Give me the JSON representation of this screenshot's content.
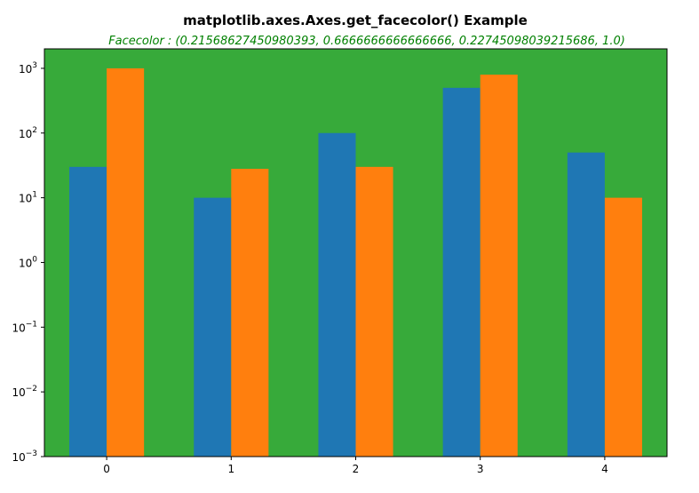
{
  "chart_data": {
    "type": "bar",
    "title": "matplotlib.axes.Axes.get_facecolor() Example",
    "subtitle": "Facecolor : (0.21568627450980393, 0.6666666666666666, 0.22745098039215686, 1.0)",
    "subtitle_color": "#008000",
    "axes_facecolor": "#37aa3a",
    "yscale": "log",
    "ylim": [
      0.001,
      2000
    ],
    "xlim": [
      -0.5,
      4.5
    ],
    "categories": [
      "0",
      "1",
      "2",
      "3",
      "4"
    ],
    "x": [
      0,
      1,
      2,
      3,
      4
    ],
    "bar_width": 0.3,
    "y_ticks": [
      {
        "base": "10",
        "exp": "−3",
        "value": 0.001
      },
      {
        "base": "10",
        "exp": "−2",
        "value": 0.01
      },
      {
        "base": "10",
        "exp": "−1",
        "value": 0.1
      },
      {
        "base": "10",
        "exp": "0",
        "value": 1
      },
      {
        "base": "10",
        "exp": "1",
        "value": 10
      },
      {
        "base": "10",
        "exp": "2",
        "value": 100
      },
      {
        "base": "10",
        "exp": "3",
        "value": 1000
      }
    ],
    "series": [
      {
        "values": [
          30,
          10,
          100,
          500,
          50
        ],
        "color": "#1f77b4",
        "offset": -0.15
      },
      {
        "values": [
          1000,
          28,
          30,
          800,
          10
        ],
        "color": "#ff7f0e",
        "offset": 0.15
      }
    ],
    "grid": false,
    "legend": "none"
  }
}
